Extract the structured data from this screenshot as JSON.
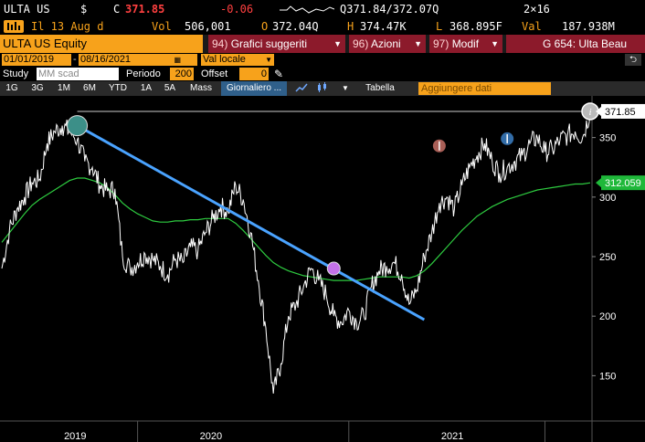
{
  "quote": {
    "ticker": "ULTA US",
    "currency_symbol": "$",
    "last_prefix": "C",
    "last": "371.85",
    "change": "-0.06",
    "bid_ask": "Q371.84/372.07Q",
    "size": "2×16"
  },
  "info": {
    "date_label": "Il 13 Aug d",
    "vol_label": "Vol",
    "volume": "506,001",
    "open_prefix": "O",
    "open": "372.04Q",
    "high_prefix": "H",
    "high": "374.47K",
    "low_prefix": "L",
    "low": "368.895F",
    "val_label": "Val",
    "value": "187.938M"
  },
  "menubar": {
    "security": "ULTA US Equity",
    "buttons": [
      {
        "num": "94)",
        "label": "Grafici suggeriti"
      },
      {
        "num": "96)",
        "label": "Azioni"
      },
      {
        "num": "97)",
        "label": "Modif"
      },
      {
        "num": "",
        "label": "G 654: Ulta Beau"
      }
    ]
  },
  "daterow": {
    "start_date": "01/01/2019",
    "end_date": "08/16/2021",
    "currency_mode": "Val locale",
    "back_icon": "undo-icon"
  },
  "studyrow": {
    "study_label": "Study",
    "study_value": "MM scad",
    "period_label": "Periodo",
    "period_value": "200",
    "offset_label": "Offset",
    "offset_value": "0"
  },
  "toolbar": {
    "ranges": [
      "1G",
      "3G",
      "1M",
      "6M",
      "YTD",
      "1A",
      "5A",
      "Mass"
    ],
    "frequency": "Giornaliero",
    "table_label": "Tabella",
    "add_data_placeholder": "Aggiungere dati"
  },
  "chart_data": {
    "type": "line",
    "ylim": [
      115,
      385
    ],
    "y_ticks": [
      150,
      200,
      250,
      300,
      350
    ],
    "x_labels": [
      "2019",
      "2020",
      "2021"
    ],
    "last_price_label": "371.85",
    "ma_label": "312.059",
    "colors": {
      "price": "#ffffff",
      "ma": "#2ecc40",
      "trendline": "#4aa3ff",
      "last_price_tag": "#ffffff",
      "ma_tag": "#1fb83a"
    },
    "series": [
      {
        "values": [
          240,
          272,
          290,
          300,
          312,
          315,
          345,
          355,
          360,
          355,
          348,
          330,
          325,
          310,
          305,
          307,
          250,
          240,
          245,
          252,
          248,
          242,
          235,
          248,
          245,
          258,
          255,
          270,
          282,
          292,
          288,
          310,
          298,
          270,
          230,
          190,
          135,
          160,
          200,
          210,
          225,
          240,
          230,
          218,
          200,
          195,
          205,
          195,
          200,
          225,
          238,
          242,
          245,
          235,
          210,
          222,
          250,
          270,
          295,
          300,
          290,
          310,
          325,
          335,
          345,
          330,
          320,
          325,
          330,
          335,
          345,
          350,
          338,
          340,
          348,
          352,
          355,
          350,
          372
        ]
      },
      {
        "values": [
          262,
          270,
          278,
          286,
          293,
          298,
          302,
          306,
          310,
          314,
          316,
          316,
          314,
          312,
          308,
          302,
          295,
          290,
          286,
          283,
          280,
          279,
          279,
          280,
          280,
          281,
          281,
          282,
          282,
          282,
          282,
          278,
          272,
          265,
          258,
          251,
          245,
          241,
          238,
          236,
          234,
          233,
          232,
          231,
          230,
          230,
          230,
          230,
          231,
          232,
          233,
          233,
          233,
          233,
          232,
          234,
          238,
          244,
          251,
          258,
          265,
          272,
          278,
          284,
          288,
          292,
          295,
          298,
          300,
          302,
          304,
          306,
          307,
          308,
          309,
          310,
          311,
          311,
          312
        ]
      }
    ],
    "trendline": {
      "from": {
        "index": 10,
        "y": 360
      },
      "to": {
        "index": 56,
        "y": 197
      }
    },
    "markers": [
      {
        "index": 10,
        "y": 360,
        "color": "#3c8f88",
        "kind": "circle"
      },
      {
        "index": 44,
        "y": 240,
        "color": "#c472e8",
        "kind": "circle"
      },
      {
        "index": 58,
        "y": 343,
        "color": "#c77066",
        "kind": "flag"
      },
      {
        "index": 67,
        "y": 349,
        "color": "#3b7fc4",
        "kind": "flag"
      },
      {
        "index": 78,
        "y": 372,
        "color": "#bbbbbb",
        "kind": "info"
      }
    ]
  }
}
